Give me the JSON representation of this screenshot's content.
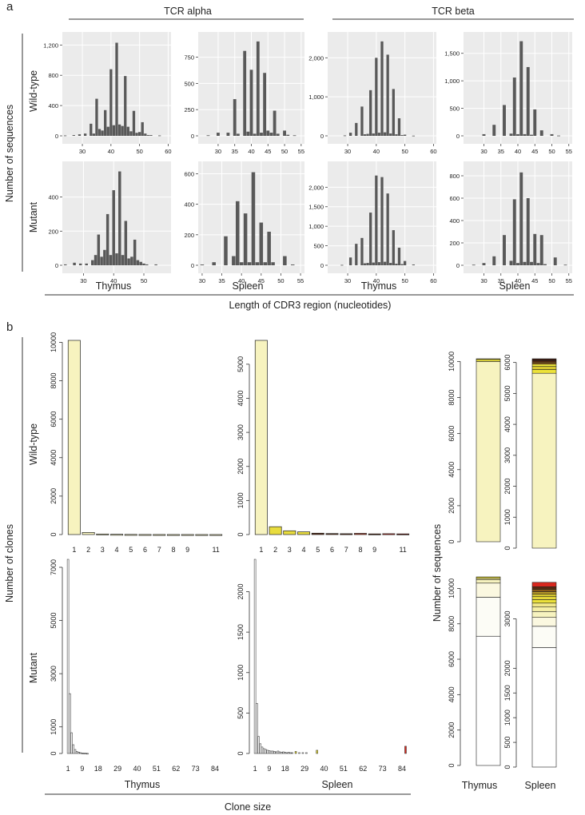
{
  "panel_a": {
    "letter": "a",
    "col_groups": [
      "TCR alpha",
      "TCR beta"
    ],
    "y_title": "Number of sequences",
    "row_labels": [
      "Wild-type",
      "Mutant"
    ],
    "x_title": "Length of CDR3 region (nucleotides)",
    "col_labels": [
      "Thymus",
      "Spleen",
      "Thymus",
      "Spleen"
    ]
  },
  "panel_b": {
    "letter": "b",
    "y_title": "Number of clones",
    "row_labels": [
      "Wild-type",
      "Mutant"
    ],
    "col_labels": [
      "Thymus",
      "Spleen"
    ],
    "x_title": "Clone size",
    "stack_y_title": "Number of sequences",
    "stack_labels": [
      "Thymus",
      "Spleen"
    ]
  },
  "colors": {
    "hist_bg": "#ebebeb",
    "hist_bar": "#595959",
    "bar_fill": "#f7f3bf",
    "yellow": "#ece23a",
    "dark_red": "#7a1d10",
    "red": "#d8281e",
    "near_white": "#fcfcf6"
  },
  "chart_data": [
    {
      "id": "a-wt-alpha-thymus",
      "type": "bar",
      "title": "Wild-type, TCR alpha, Thymus",
      "xlabel": "Length of CDR3 region (nucleotides)",
      "ylabel": "Number of sequences",
      "xlim": [
        23,
        61
      ],
      "ylim": [
        0,
        1330
      ],
      "xticks": [
        30,
        40,
        50,
        60
      ],
      "yticks": [
        0,
        400,
        800,
        1200
      ],
      "ytick_labels": [
        "0",
        "400",
        "800",
        "1,200"
      ],
      "x": [
        24,
        27,
        29,
        31,
        33,
        34,
        35,
        36,
        37,
        38,
        39,
        40,
        41,
        42,
        43,
        44,
        45,
        46,
        47,
        48,
        49,
        50,
        51,
        52,
        53,
        54,
        57
      ],
      "values": [
        5,
        10,
        20,
        30,
        160,
        30,
        490,
        90,
        70,
        340,
        120,
        880,
        140,
        1230,
        150,
        130,
        790,
        120,
        60,
        330,
        40,
        50,
        180,
        30,
        10,
        10,
        5
      ]
    },
    {
      "id": "a-wt-alpha-spleen",
      "type": "bar",
      "title": "Wild-type, TCR alpha, Spleen",
      "xlabel": "Length of CDR3 region (nucleotides)",
      "ylabel": "Number of sequences",
      "xlim": [
        24,
        56
      ],
      "ylim": [
        0,
        960
      ],
      "xticks": [
        30,
        35,
        40,
        45,
        50,
        55
      ],
      "yticks": [
        0,
        250,
        500,
        750
      ],
      "ytick_labels": [
        "0",
        "250",
        "500",
        "750"
      ],
      "x": [
        27,
        30,
        33,
        35,
        36,
        38,
        39,
        40,
        41,
        42,
        43,
        44,
        45,
        46,
        47,
        48,
        50,
        51,
        53
      ],
      "values": [
        5,
        30,
        30,
        350,
        20,
        810,
        40,
        630,
        20,
        900,
        30,
        600,
        50,
        30,
        240,
        20,
        50,
        10,
        5
      ]
    },
    {
      "id": "a-wt-beta-thymus",
      "type": "bar",
      "title": "Wild-type, TCR beta, Thymus",
      "xlabel": "Length of CDR3 region (nucleotides)",
      "ylabel": "Number of sequences",
      "xlim": [
        23,
        61
      ],
      "ylim": [
        0,
        2580
      ],
      "xticks": [
        30,
        40,
        50,
        60
      ],
      "yticks": [
        0,
        1000,
        2000
      ],
      "ytick_labels": [
        "0",
        "1,000",
        "2,000"
      ],
      "x": [
        29,
        31,
        33,
        35,
        36,
        37,
        38,
        39,
        40,
        41,
        42,
        43,
        44,
        45,
        46,
        47,
        48,
        49,
        50,
        53
      ],
      "values": [
        10,
        80,
        330,
        750,
        40,
        50,
        1170,
        60,
        2000,
        80,
        2420,
        90,
        2080,
        60,
        1200,
        40,
        450,
        20,
        30,
        5
      ]
    },
    {
      "id": "a-wt-beta-spleen",
      "type": "bar",
      "title": "Wild-type, TCR beta, Spleen",
      "xlabel": "Length of CDR3 region (nucleotides)",
      "ylabel": "Number of sequences",
      "xlim": [
        24,
        56
      ],
      "ylim": [
        0,
        1830
      ],
      "xticks": [
        30,
        35,
        40,
        45,
        50,
        55
      ],
      "yticks": [
        0,
        500,
        1000,
        1500
      ],
      "ytick_labels": [
        "0",
        "500",
        "1,000",
        "1,500"
      ],
      "x": [
        30,
        33,
        36,
        38,
        39,
        40,
        41,
        42,
        43,
        44,
        45,
        47,
        50,
        52
      ],
      "values": [
        30,
        200,
        560,
        40,
        1060,
        30,
        1720,
        30,
        1250,
        20,
        480,
        100,
        30,
        5
      ]
    },
    {
      "id": "a-mut-alpha-thymus",
      "type": "bar",
      "title": "Mutant, TCR alpha, Thymus",
      "xlabel": "Length of CDR3 region (nucleotides)",
      "ylabel": "Number of sequences",
      "xlim": [
        23,
        59
      ],
      "ylim": [
        0,
        590
      ],
      "xticks": [
        30,
        40,
        50
      ],
      "yticks": [
        0,
        200,
        400
      ],
      "ytick_labels": [
        "0",
        "200",
        "400"
      ],
      "x": [
        24,
        27,
        29,
        31,
        33,
        34,
        35,
        36,
        37,
        38,
        39,
        40,
        41,
        42,
        43,
        44,
        45,
        46,
        47,
        48,
        49,
        50,
        51,
        54
      ],
      "values": [
        5,
        15,
        10,
        10,
        30,
        60,
        180,
        50,
        90,
        300,
        60,
        440,
        70,
        550,
        60,
        260,
        40,
        50,
        150,
        30,
        20,
        10,
        5,
        5
      ]
    },
    {
      "id": "a-mut-alpha-spleen",
      "type": "bar",
      "title": "Mutant, TCR alpha, Spleen",
      "xlabel": "Length of CDR3 region (nucleotides)",
      "ylabel": "Number of sequences",
      "xlim": [
        29,
        56
      ],
      "ylim": [
        0,
        660
      ],
      "xticks": [
        30,
        35,
        40,
        45,
        50,
        55
      ],
      "yticks": [
        0,
        200,
        400,
        600
      ],
      "ytick_labels": [
        "0",
        "200",
        "400",
        "600"
      ],
      "x": [
        30,
        33,
        36,
        38,
        39,
        40,
        41,
        42,
        43,
        44,
        45,
        46,
        47,
        48,
        51,
        53
      ],
      "values": [
        5,
        20,
        190,
        60,
        420,
        20,
        340,
        20,
        610,
        20,
        280,
        20,
        220,
        20,
        60,
        5
      ]
    },
    {
      "id": "a-mut-beta-thymus",
      "type": "bar",
      "title": "Mutant, TCR beta, Thymus",
      "xlabel": "Length of CDR3 region (nucleotides)",
      "ylabel": "Number of sequences",
      "xlim": [
        23,
        61
      ],
      "ylim": [
        0,
        2580
      ],
      "xticks": [
        30,
        40,
        50,
        60
      ],
      "yticks": [
        0,
        500,
        1000,
        1500,
        2000
      ],
      "ytick_labels": [
        "0",
        "500",
        "1,000",
        "1,500",
        "2,000"
      ],
      "x": [
        28,
        31,
        33,
        35,
        36,
        37,
        38,
        39,
        40,
        41,
        42,
        43,
        44,
        45,
        46,
        47,
        48,
        49,
        50,
        53
      ],
      "values": [
        10,
        200,
        550,
        700,
        50,
        60,
        1350,
        70,
        2300,
        80,
        2260,
        90,
        1840,
        60,
        900,
        40,
        450,
        30,
        110,
        20
      ]
    },
    {
      "id": "a-mut-beta-spleen",
      "type": "bar",
      "title": "Mutant, TCR beta, Spleen",
      "xlabel": "Length of CDR3 region (nucleotides)",
      "ylabel": "Number of sequences",
      "xlim": [
        24,
        56
      ],
      "ylim": [
        0,
        900
      ],
      "xticks": [
        30,
        35,
        40,
        45,
        50,
        55
      ],
      "yticks": [
        0,
        200,
        400,
        600,
        800
      ],
      "ytick_labels": [
        "0",
        "200",
        "400",
        "600",
        "800"
      ],
      "x": [
        27,
        30,
        33,
        36,
        38,
        39,
        40,
        41,
        42,
        43,
        44,
        45,
        46,
        47,
        48,
        51,
        54
      ],
      "values": [
        5,
        20,
        80,
        270,
        40,
        590,
        20,
        830,
        30,
        600,
        30,
        280,
        20,
        270,
        10,
        70,
        5
      ]
    },
    {
      "id": "b-wt-thymus",
      "type": "bar",
      "title": "Wild-type, Thymus",
      "xlabel": "Clone size",
      "ylabel": "Number of clones",
      "ylim": [
        0,
        10100
      ],
      "yticks": [
        0,
        2000,
        4000,
        6000,
        8000,
        10000
      ],
      "ytick_labels": [
        "0",
        "2000",
        "4000",
        "6000",
        "8000",
        "10000"
      ],
      "categories": [
        "1",
        "2",
        "3",
        "4",
        "5",
        "6",
        "7",
        "8",
        "9",
        "10",
        "11"
      ],
      "xtick_labels": [
        "1",
        "2",
        "3",
        "4",
        "5",
        "6",
        "7",
        "8",
        "9",
        "",
        "11"
      ],
      "values": [
        10100,
        110,
        30,
        15,
        8,
        5,
        4,
        3,
        3,
        2,
        2
      ]
    },
    {
      "id": "b-wt-spleen",
      "type": "bar",
      "title": "Wild-type, Spleen",
      "xlabel": "Clone size",
      "ylabel": "Number of clones",
      "ylim": [
        0,
        5700
      ],
      "yticks": [
        0,
        1000,
        2000,
        3000,
        4000,
        5000
      ],
      "ytick_labels": [
        "0",
        "1000",
        "2000",
        "3000",
        "4000",
        "5000"
      ],
      "categories": [
        "1",
        "2",
        "3",
        "4",
        "5",
        "6",
        "7",
        "8",
        "9",
        "10",
        "11"
      ],
      "xtick_labels": [
        "1",
        "2",
        "3",
        "4",
        "5",
        "6",
        "7",
        "8",
        "9",
        "",
        "11"
      ],
      "values": [
        5700,
        230,
        110,
        80,
        40,
        30,
        25,
        35,
        20,
        25,
        20
      ],
      "colors": [
        "#f7f3bf",
        "#e8dc3e",
        "#e8dc3e",
        "#e8dc3e",
        "#5a2a10",
        "#5a2a10",
        "#5a2a10",
        "#a8321c",
        "#5a2a10",
        "#c82a1e",
        "#7a1d10"
      ]
    },
    {
      "id": "b-mut-thymus",
      "type": "bar",
      "title": "Mutant, Thymus",
      "xlabel": "Clone size",
      "ylabel": "Number of clones",
      "ylim": [
        0,
        7300
      ],
      "yticks": [
        0,
        1000,
        3000,
        5000,
        7000
      ],
      "ytick_labels": [
        "0",
        "1000",
        "3000",
        "5000",
        "7000"
      ],
      "xmax": 88,
      "xticks": [
        1,
        9,
        18,
        29,
        40,
        51,
        62,
        73,
        84
      ],
      "x": [
        1,
        2,
        3,
        4,
        5,
        6,
        7,
        8,
        9,
        10,
        11,
        12
      ],
      "values": [
        7300,
        2250,
        780,
        330,
        150,
        80,
        50,
        30,
        20,
        12,
        8,
        5
      ]
    },
    {
      "id": "b-mut-spleen",
      "type": "bar",
      "title": "Mutant, Spleen",
      "xlabel": "Clone size",
      "ylabel": "Number of clones",
      "ylim": [
        0,
        2400
      ],
      "yticks": [
        0,
        500,
        1000,
        1500,
        2000
      ],
      "ytick_labels": [
        "0",
        "500",
        "1000",
        "1500",
        "2000"
      ],
      "xmax": 88,
      "xticks": [
        1,
        9,
        18,
        29,
        40,
        51,
        62,
        73,
        84
      ],
      "x": [
        1,
        2,
        3,
        4,
        5,
        6,
        7,
        8,
        9,
        10,
        11,
        12,
        13,
        14,
        15,
        16,
        17,
        18,
        19,
        20,
        21,
        22,
        24,
        26,
        28,
        30,
        36,
        86
      ],
      "values": [
        2400,
        620,
        210,
        120,
        80,
        60,
        50,
        40,
        35,
        30,
        30,
        25,
        20,
        30,
        20,
        15,
        20,
        15,
        10,
        15,
        10,
        10,
        25,
        10,
        10,
        10,
        40,
        90
      ],
      "colors": {
        "24": "#e8dc3e",
        "36": "#e8dc3e",
        "86": "#d8281e"
      }
    },
    {
      "id": "b-stack-wt",
      "type": "stacked_bar",
      "ylabel": "Number of sequences",
      "categories": [
        "Thymus",
        "Spleen"
      ],
      "ylims": [
        [
          0,
          10150
        ],
        [
          0,
          6120
        ]
      ],
      "yticks": [
        [
          0,
          2000,
          4000,
          6000,
          8000,
          10000
        ],
        [
          0,
          1000,
          2000,
          3000,
          4000,
          5000,
          6000
        ]
      ],
      "stacks": [
        [
          {
            "value": 10000,
            "color": "#f7f3bf"
          },
          {
            "value": 110,
            "color": "#ece23a"
          },
          {
            "value": 40,
            "color": "#ece23a"
          }
        ],
        [
          {
            "value": 5650,
            "color": "#f7f3bf"
          },
          {
            "value": 120,
            "color": "#ece23a"
          },
          {
            "value": 100,
            "color": "#d8c830"
          },
          {
            "value": 80,
            "color": "#ece23a"
          },
          {
            "value": 60,
            "color": "#8a5a18"
          },
          {
            "value": 50,
            "color": "#5a2a10"
          },
          {
            "value": 60,
            "color": "#3a1a10"
          }
        ]
      ]
    },
    {
      "id": "b-stack-mut",
      "type": "stacked_bar",
      "ylabel": "Number of sequences",
      "categories": [
        "Thymus",
        "Spleen"
      ],
      "ylims": [
        [
          0,
          10650
        ],
        [
          0,
          3850
        ]
      ],
      "yticks": [
        [
          0,
          2000,
          4000,
          6000,
          8000,
          10000
        ],
        [
          0,
          500,
          1000,
          1500,
          2000,
          3000
        ]
      ],
      "stacks": [
        [
          {
            "value": 7300,
            "color": "#ffffff"
          },
          {
            "value": 2200,
            "color": "#fcfcf6"
          },
          {
            "value": 800,
            "color": "#fbf8e0"
          },
          {
            "value": 200,
            "color": "#f7f3bf"
          },
          {
            "value": 80,
            "color": "#f1e88a"
          },
          {
            "value": 70,
            "color": "#ece23a"
          }
        ],
        [
          {
            "value": 2420,
            "color": "#ffffff"
          },
          {
            "value": 430,
            "color": "#fcfcf6"
          },
          {
            "value": 180,
            "color": "#fbf8e0"
          },
          {
            "value": 120,
            "color": "#f7f3bf"
          },
          {
            "value": 90,
            "color": "#f5efa5"
          },
          {
            "value": 80,
            "color": "#f1e88a"
          },
          {
            "value": 70,
            "color": "#ece23a"
          },
          {
            "value": 60,
            "color": "#e6d83a"
          },
          {
            "value": 50,
            "color": "#d8c830"
          },
          {
            "value": 50,
            "color": "#b89a28"
          },
          {
            "value": 50,
            "color": "#8a5a18"
          },
          {
            "value": 50,
            "color": "#5a2a10"
          },
          {
            "value": 90,
            "color": "#d8281e"
          }
        ]
      ]
    }
  ]
}
